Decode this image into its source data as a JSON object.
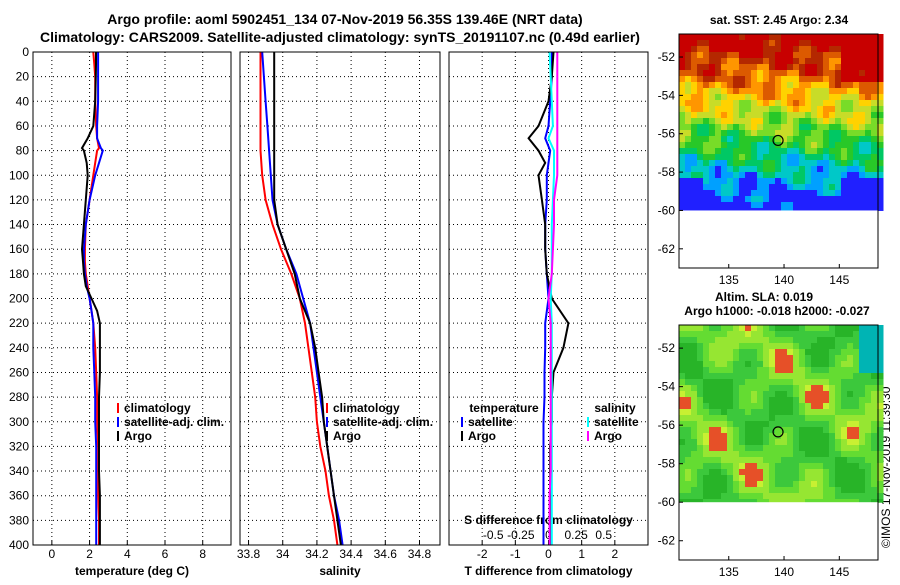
{
  "title_line1": "Argo profile: aoml 5902451_134 07-Nov-2019 56.35S 139.46E (NRT data)",
  "title_line2": "Climatology: CARS2009. Satellite-adjusted climatology: synTS_20191107.nc (0.49d earlier)",
  "credit": "©IMOS 17-Nov-2019 11:39:30",
  "colors": {
    "climatology": "#ff0000",
    "satellite": "#0000ff",
    "argo": "#000000",
    "cyan": "#00ffff",
    "magenta": "#ff00ff",
    "grid": "#000000"
  },
  "chart_data": [
    {
      "type": "line",
      "name": "temperature",
      "xlabel": "temperature (deg C)",
      "ylabel": "",
      "xlim": [
        -1,
        9.5
      ],
      "ylim": [
        400,
        0
      ],
      "xticks": [
        0,
        2,
        4,
        6,
        8
      ],
      "xtick_labels": [
        "0",
        "2",
        "4",
        "6",
        "8"
      ],
      "yticks": [
        0,
        20,
        40,
        60,
        80,
        100,
        120,
        140,
        160,
        180,
        200,
        220,
        240,
        260,
        280,
        300,
        320,
        340,
        360,
        380,
        400
      ],
      "depth": [
        0,
        10,
        20,
        40,
        60,
        70,
        78,
        80,
        90,
        100,
        120,
        140,
        160,
        170,
        180,
        190,
        200,
        210,
        220,
        240,
        260,
        280,
        300,
        320,
        340,
        360,
        380,
        400
      ],
      "legend": [
        "climatology",
        "satellite-adj. clim.",
        "Argo"
      ],
      "series": [
        {
          "name": "climatology",
          "color": "#ff0000",
          "values": [
            2.2,
            2.25,
            2.3,
            2.3,
            2.35,
            2.4,
            2.5,
            2.4,
            2.3,
            2.2,
            2.0,
            1.8,
            1.75,
            1.75,
            1.8,
            1.9,
            2.0,
            2.1,
            2.2,
            2.3,
            2.35,
            2.4,
            2.4,
            2.45,
            2.45,
            2.45,
            2.5,
            2.5
          ]
        },
        {
          "name": "satellite-adj. clim.",
          "color": "#0000ff",
          "values": [
            2.45,
            2.45,
            2.45,
            2.45,
            2.4,
            2.4,
            2.6,
            2.7,
            2.5,
            2.3,
            2.0,
            1.8,
            1.7,
            1.7,
            1.75,
            1.85,
            2.0,
            2.1,
            2.2,
            2.2,
            2.25,
            2.3,
            2.3,
            2.35,
            2.35,
            2.35,
            2.35,
            2.35
          ]
        },
        {
          "name": "Argo",
          "color": "#000000",
          "values": [
            2.34,
            2.34,
            2.33,
            2.3,
            2.2,
            1.9,
            1.6,
            1.7,
            1.85,
            1.9,
            1.8,
            1.7,
            1.6,
            1.65,
            1.7,
            1.8,
            2.1,
            2.4,
            2.55,
            2.55,
            2.55,
            2.5,
            2.5,
            2.5,
            2.5,
            2.55,
            2.55,
            2.55
          ]
        }
      ]
    },
    {
      "type": "line",
      "name": "salinity",
      "xlabel": "salinity",
      "ylabel": "",
      "xlim": [
        33.75,
        34.92
      ],
      "ylim": [
        400,
        0
      ],
      "xticks": [
        33.8,
        34.0,
        34.2,
        34.4,
        34.6,
        34.8
      ],
      "xtick_labels": [
        "33.8",
        "34",
        "34.2",
        "34.4",
        "34.6",
        "34.8"
      ],
      "yticks": [
        0,
        20,
        40,
        60,
        80,
        100,
        120,
        140,
        160,
        180,
        200,
        220,
        240,
        260,
        280,
        300,
        320,
        340,
        360,
        380,
        400
      ],
      "depth": [
        0,
        20,
        40,
        60,
        80,
        100,
        120,
        140,
        160,
        180,
        200,
        220,
        240,
        260,
        280,
        300,
        320,
        340,
        360,
        380,
        400
      ],
      "legend": [
        "climatology",
        "satellite-adj. clim.",
        "Argo"
      ],
      "series": [
        {
          "name": "climatology",
          "color": "#ff0000",
          "values": [
            33.87,
            33.87,
            33.87,
            33.87,
            33.87,
            33.88,
            33.9,
            33.94,
            33.99,
            34.05,
            34.1,
            34.13,
            34.15,
            34.17,
            34.19,
            34.2,
            34.22,
            34.25,
            34.27,
            34.3,
            34.32
          ]
        },
        {
          "name": "satellite-adj. clim.",
          "color": "#0000ff",
          "values": [
            33.88,
            33.89,
            33.9,
            33.91,
            33.92,
            33.93,
            33.94,
            33.97,
            34.02,
            34.08,
            34.12,
            34.16,
            34.18,
            34.2,
            34.22,
            34.24,
            34.26,
            34.28,
            34.3,
            34.33,
            34.35
          ]
        },
        {
          "name": "Argo",
          "color": "#000000",
          "values": [
            33.95,
            33.95,
            33.95,
            33.95,
            33.95,
            33.95,
            33.95,
            33.97,
            34.02,
            34.07,
            34.1,
            34.16,
            34.19,
            34.21,
            34.23,
            34.24,
            34.26,
            34.28,
            34.3,
            34.32,
            34.34
          ]
        }
      ]
    },
    {
      "type": "line",
      "name": "differences",
      "xlabel": "T difference from climatology",
      "xlabel_top": "S difference from climatology",
      "xlim": [
        -3,
        3
      ],
      "ylim": [
        400,
        0
      ],
      "xticks": [
        -2,
        -1,
        0,
        1,
        2
      ],
      "xtick_labels": [
        "-2",
        "-1",
        "0",
        "1",
        "2"
      ],
      "s_xticks": [
        -0.5,
        -0.25,
        0,
        0.25,
        0.5
      ],
      "s_xtick_labels": [
        "-0.5",
        "-0.25",
        "0",
        "0.25",
        "0.5"
      ],
      "yticks": [
        0,
        20,
        40,
        60,
        80,
        100,
        120,
        140,
        160,
        180,
        200,
        220,
        240,
        260,
        280,
        300,
        320,
        340,
        360,
        380,
        400
      ],
      "depth": [
        0,
        20,
        40,
        60,
        70,
        80,
        90,
        100,
        120,
        140,
        160,
        180,
        200,
        220,
        240,
        260,
        280,
        300,
        320,
        340,
        360,
        380,
        400
      ],
      "legend_temperature_title": "temperature",
      "legend_salinity_title": "salinity",
      "legend_temperature": [
        "satellite",
        "Argo"
      ],
      "legend_salinity": [
        "satellite",
        "Argo"
      ],
      "series": [
        {
          "name": "T satellite",
          "color": "#0000ff",
          "values": [
            0.1,
            0.1,
            0.05,
            0.0,
            -0.1,
            0.05,
            0.0,
            -0.05,
            -0.05,
            -0.1,
            -0.1,
            -0.05,
            0.0,
            -0.1,
            -0.1,
            -0.12,
            -0.12,
            -0.15,
            -0.15,
            -0.15,
            -0.15,
            -0.15,
            -0.15
          ]
        },
        {
          "name": "T Argo",
          "color": "#000000",
          "values": [
            0.15,
            0.1,
            0.0,
            -0.3,
            -0.6,
            -0.3,
            -0.1,
            -0.3,
            -0.2,
            -0.1,
            -0.1,
            -0.05,
            0.1,
            0.6,
            0.45,
            0.15,
            0.1,
            0.1,
            0.05,
            0.05,
            0.05,
            0.05,
            0.05
          ]
        },
        {
          "name": "S satellite",
          "color": "#00ffff",
          "values": [
            0.01,
            0.02,
            0.03,
            0.04,
            0.0,
            0.05,
            0.05,
            0.05,
            0.04,
            0.03,
            0.03,
            0.03,
            0.02,
            0.03,
            0.03,
            0.03,
            0.03,
            0.03,
            0.03,
            0.03,
            0.03,
            0.03,
            0.03
          ]
        },
        {
          "name": "S Argo",
          "color": "#ff00ff",
          "values": [
            0.08,
            0.08,
            0.08,
            0.08,
            0.08,
            0.08,
            0.08,
            0.08,
            0.05,
            0.05,
            0.04,
            0.03,
            0.0,
            0.02,
            0.02,
            0.02,
            0.02,
            0.02,
            0.02,
            0.02,
            0.01,
            0.01,
            0.01
          ]
        }
      ]
    },
    {
      "type": "heatmap",
      "name": "sst-map",
      "title": "sat. SST: 2.45 Argo: 2.34",
      "xticks": [
        135,
        140,
        145
      ],
      "xtick_labels": [
        "135",
        "140",
        "145"
      ],
      "yticks": [
        -52,
        -54,
        -56,
        -58,
        -60,
        -62
      ],
      "ytick_labels": [
        "-52",
        "-54",
        "-56",
        "-58",
        "-60",
        "-62"
      ],
      "xlim": [
        130.5,
        148.5
      ],
      "ylim": [
        -63,
        -50.8
      ],
      "profile_location": {
        "lon": 139.46,
        "lat": -56.35
      }
    },
    {
      "type": "heatmap",
      "name": "sla-map",
      "title": "Altim. SLA: 0.019",
      "subtitle": "Argo h1000: -0.018 h2000: -0.027",
      "xticks": [
        135,
        140,
        145
      ],
      "xtick_labels": [
        "135",
        "140",
        "145"
      ],
      "yticks": [
        -52,
        -54,
        -56,
        -58,
        -60,
        -62
      ],
      "ytick_labels": [
        "-52",
        "-54",
        "-56",
        "-58",
        "-60",
        "-62"
      ],
      "xlim": [
        130.5,
        148.5
      ],
      "ylim": [
        -63,
        -50.8
      ],
      "profile_location": {
        "lon": 139.46,
        "lat": -56.35
      }
    }
  ]
}
